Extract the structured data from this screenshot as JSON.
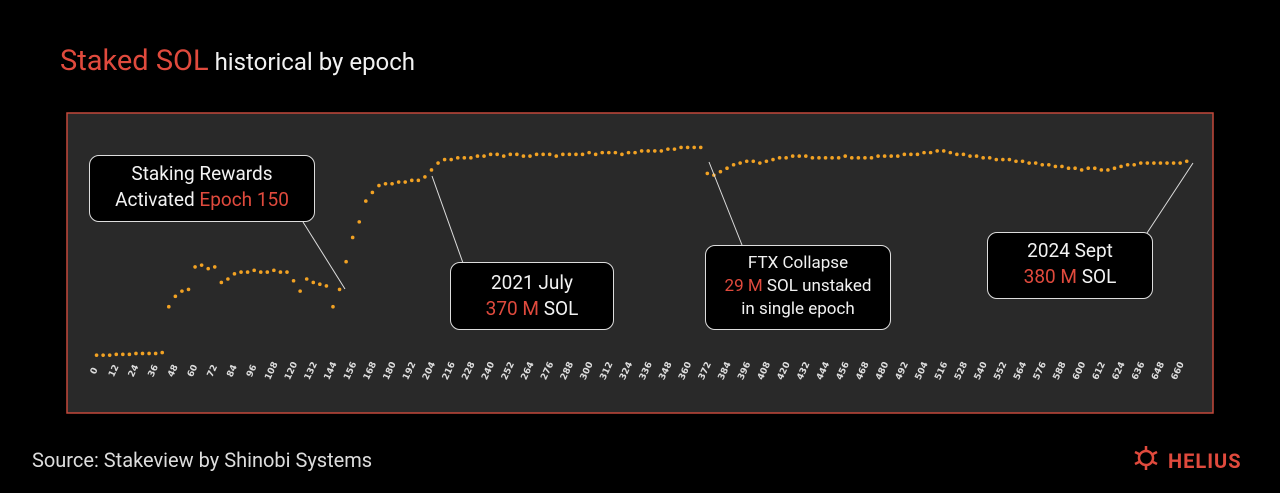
{
  "title": {
    "accent": "Staked SOL",
    "rest": "historical by epoch"
  },
  "source": "Source: Stakeview  by Shinobi Systems",
  "brand": "HELIUS",
  "annotations": [
    {
      "lines": [
        [
          {
            "text": "Staking Rewards"
          }
        ],
        [
          {
            "text": "Activated "
          },
          {
            "text": "Epoch 150",
            "accent": true
          }
        ]
      ]
    },
    {
      "lines": [
        [
          {
            "text": "2021 July"
          }
        ],
        [
          {
            "text": "370 M",
            "accent": true
          },
          {
            "text": " SOL"
          }
        ]
      ]
    },
    {
      "lines": [
        [
          {
            "text": "FTX Collapse"
          }
        ],
        [
          {
            "text": "29 M",
            "accent": true
          },
          {
            "text": " SOL unstaked"
          }
        ],
        [
          {
            "text": "in single epoch"
          }
        ]
      ]
    },
    {
      "lines": [
        [
          {
            "text": "2024 Sept"
          }
        ],
        [
          {
            "text": "380 M",
            "accent": true
          },
          {
            "text": " SOL"
          }
        ]
      ]
    }
  ],
  "chart_data": {
    "type": "scatter",
    "color": "#f2a223",
    "xlim": [
      -18,
      680
    ],
    "ylim": [
      245,
      405
    ],
    "xticks": [
      0,
      12,
      24,
      36,
      48,
      60,
      72,
      84,
      96,
      108,
      120,
      132,
      144,
      156,
      168,
      180,
      192,
      204,
      216,
      228,
      240,
      252,
      264,
      276,
      288,
      300,
      312,
      324,
      336,
      348,
      360,
      372,
      384,
      396,
      408,
      420,
      432,
      444,
      456,
      468,
      480,
      492,
      504,
      516,
      528,
      540,
      552,
      564,
      576,
      588,
      600,
      612,
      624,
      636,
      648,
      660
    ],
    "x": [
      0,
      4,
      8,
      12,
      16,
      20,
      24,
      28,
      32,
      36,
      40,
      44,
      48,
      52,
      56,
      60,
      64,
      68,
      72,
      76,
      80,
      84,
      88,
      92,
      96,
      100,
      104,
      108,
      112,
      116,
      120,
      124,
      128,
      132,
      136,
      140,
      144,
      148,
      152,
      156,
      160,
      164,
      168,
      172,
      176,
      180,
      184,
      188,
      192,
      196,
      200,
      204,
      208,
      212,
      216,
      220,
      224,
      228,
      232,
      236,
      240,
      244,
      248,
      252,
      256,
      260,
      264,
      268,
      272,
      276,
      280,
      284,
      288,
      292,
      296,
      300,
      304,
      308,
      312,
      316,
      320,
      324,
      328,
      332,
      336,
      340,
      344,
      348,
      352,
      356,
      360,
      364,
      368,
      372,
      376,
      380,
      384,
      388,
      392,
      396,
      400,
      404,
      408,
      412,
      416,
      420,
      424,
      428,
      432,
      436,
      440,
      444,
      448,
      452,
      456,
      460,
      464,
      468,
      472,
      476,
      480,
      484,
      488,
      492,
      496,
      500,
      504,
      508,
      512,
      516,
      520,
      524,
      528,
      532,
      536,
      540,
      544,
      548,
      552,
      556,
      560,
      564,
      568,
      572,
      576,
      580,
      584,
      588,
      592,
      596,
      600,
      604,
      608,
      612,
      616,
      620,
      624,
      628,
      632,
      636,
      640,
      644,
      648,
      652,
      656,
      660,
      664
    ],
    "values": [
      268,
      268,
      268,
      268.5,
      268.5,
      268.5,
      269,
      269,
      269,
      269,
      269.5,
      296,
      302,
      305,
      306,
      319,
      320,
      318,
      319,
      310,
      312,
      315,
      316,
      316,
      317,
      316,
      316,
      317,
      316,
      316,
      311,
      305,
      312,
      310,
      309,
      308,
      296,
      306,
      322,
      336,
      345,
      357,
      362,
      366,
      367,
      367,
      368,
      368,
      369,
      369,
      371,
      375,
      379,
      381,
      381,
      382,
      382,
      382,
      383,
      383,
      384,
      384,
      383,
      384,
      384,
      383,
      383,
      384,
      384,
      384,
      383,
      384,
      384,
      384,
      384,
      385,
      384,
      385,
      385,
      385,
      384,
      385,
      385,
      386,
      386,
      386,
      386,
      387,
      387,
      388,
      388,
      388,
      388,
      373,
      372,
      374,
      376,
      378,
      379,
      380,
      380,
      379,
      380,
      381,
      382,
      382,
      383,
      383,
      383,
      382,
      382,
      382,
      382,
      382,
      383,
      382,
      382,
      382,
      382,
      383,
      383,
      383,
      383,
      384,
      384,
      384,
      385,
      385,
      386,
      386,
      385,
      384,
      384,
      383,
      383,
      382,
      382,
      381,
      381,
      381,
      380,
      380,
      379,
      379,
      378,
      378,
      377,
      377,
      376,
      376,
      375,
      376,
      376,
      375,
      375,
      376,
      377,
      378,
      378,
      379,
      379,
      379,
      379,
      379,
      379,
      379,
      380
    ]
  }
}
